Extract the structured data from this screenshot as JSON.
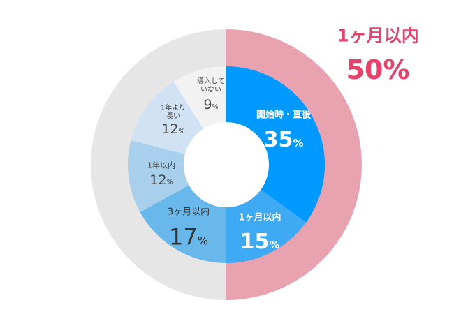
{
  "chart_data": {
    "type": "pie",
    "subtype": "nested-donut",
    "inner": {
      "categories": [
        "開始時・直後",
        "1ヶ月以内",
        "3ヶ月以内",
        "1年以内",
        "1年より長い",
        "導入していない"
      ],
      "values": [
        35,
        15,
        17,
        12,
        12,
        9
      ],
      "value_labels": [
        "35",
        "15",
        "17",
        "12",
        "12",
        "9"
      ],
      "unit": "%",
      "colors": [
        "#0099ff",
        "#3daaf3",
        "#68b8ec",
        "#a8d0ec",
        "#d0e2f4",
        "#f2f2f2"
      ]
    },
    "outer": {
      "values": [
        50,
        50
      ],
      "colors": [
        "#e9a3b0",
        "#e6e6e6"
      ]
    },
    "annotation": {
      "label": "1ヶ月以内",
      "value": "50%",
      "color": "#e8416a"
    }
  }
}
